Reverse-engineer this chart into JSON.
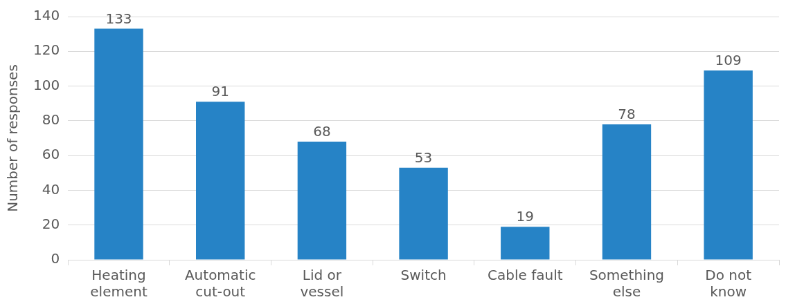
{
  "chart_data": {
    "type": "bar",
    "ylabel": "Number of responses",
    "categories": [
      "Heating\nelement",
      "Automatic\ncut-out",
      "Lid or\nvessel",
      "Switch",
      "Cable fault",
      "Something\nelse",
      "Do not\nknow"
    ],
    "values": [
      133,
      91,
      68,
      53,
      19,
      78,
      109
    ],
    "color": "#2683c6",
    "ylim": [
      0,
      140
    ],
    "yticks": [
      0,
      20,
      40,
      60,
      80,
      100,
      120,
      140
    ],
    "grid": "y",
    "data_labels": true,
    "legend": false
  }
}
